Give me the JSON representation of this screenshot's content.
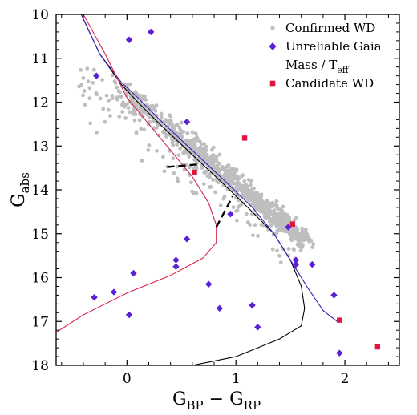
{
  "chart_data": {
    "type": "scatter",
    "xlabel": {
      "main": "G",
      "sub1": "BP",
      "mid": " − G",
      "sub2": "RP"
    },
    "ylabel": {
      "main": "G",
      "sub": "abs"
    },
    "xlim": [
      -0.65,
      2.5
    ],
    "ylim": [
      18,
      10
    ],
    "y_inverted": true,
    "x_ticks": [
      0,
      1,
      2
    ],
    "x_tick_labels": [
      "0",
      "1",
      "2"
    ],
    "y_ticks": [
      10,
      11,
      12,
      13,
      14,
      15,
      16,
      17,
      18
    ],
    "y_tick_labels": [
      "10",
      "11",
      "12",
      "13",
      "14",
      "15",
      "16",
      "17",
      "18"
    ],
    "grid": false,
    "legend_position": "top-right",
    "legend": [
      {
        "label": "Confirmed WD",
        "marker": "circle",
        "color": "#bebebe"
      },
      {
        "label": "Unreliable Gaia",
        "marker": "diamond",
        "color": "#5b1fd6"
      },
      {
        "label_main": "Mass / T",
        "label_sub": "eff",
        "marker": "none",
        "color": "#000000"
      },
      {
        "label": "Candidate WD",
        "marker": "square",
        "color": "#e0143c"
      }
    ],
    "series": [
      {
        "name": "Unreliable Gaia",
        "kind": "scatter",
        "marker": "diamond",
        "color": "#5b1fd6",
        "x": [
          0.02,
          0.22,
          -0.28,
          0.55,
          -0.3,
          -0.12,
          0.02,
          0.06,
          0.45,
          0.45,
          0.55,
          0.75,
          0.85,
          1.15,
          1.2,
          1.55,
          1.7,
          1.9,
          1.95,
          0.95,
          1.48,
          1.55
        ],
        "y": [
          10.58,
          10.4,
          11.4,
          12.45,
          16.45,
          16.33,
          16.85,
          15.9,
          15.6,
          15.75,
          15.12,
          16.15,
          16.7,
          16.63,
          17.13,
          15.6,
          15.7,
          16.4,
          17.72,
          14.55,
          14.85,
          15.7
        ]
      },
      {
        "name": "Candidate WD",
        "kind": "scatter",
        "marker": "square",
        "color": "#e0143c",
        "x": [
          1.08,
          0.62,
          1.52,
          1.95,
          2.3
        ],
        "y": [
          12.82,
          13.6,
          14.78,
          16.97,
          17.58
        ]
      },
      {
        "kind": "line",
        "color": "#000000",
        "x": [
          -0.42,
          -0.25,
          -0.05,
          0.1,
          0.3,
          0.6,
          0.9,
          1.15,
          1.35,
          1.5,
          1.6,
          1.63,
          1.6,
          1.4,
          1.0,
          0.6
        ],
        "y": [
          10.0,
          10.9,
          11.6,
          12.0,
          12.5,
          13.2,
          13.9,
          14.5,
          15.0,
          15.6,
          16.2,
          16.7,
          17.1,
          17.4,
          17.8,
          18.0
        ]
      },
      {
        "kind": "line",
        "color": "#3b1fb8",
        "x": [
          -0.42,
          -0.25,
          -0.05,
          0.1,
          0.3,
          0.6,
          0.9,
          1.15,
          1.35,
          1.5,
          1.65,
          1.8,
          1.93
        ],
        "y": [
          10.0,
          10.9,
          11.55,
          11.9,
          12.4,
          13.1,
          13.8,
          14.4,
          15.0,
          15.6,
          16.2,
          16.75,
          17.0
        ]
      },
      {
        "kind": "line",
        "color": "#d8244a",
        "x": [
          -0.4,
          -0.2,
          0.0,
          0.2,
          0.4,
          0.6,
          0.75,
          0.82,
          0.82,
          0.7,
          0.4,
          0.0,
          -0.4,
          -0.65
        ],
        "y": [
          10.0,
          10.9,
          11.9,
          12.5,
          13.1,
          13.7,
          14.3,
          14.8,
          15.2,
          15.55,
          15.95,
          16.35,
          16.85,
          17.25
        ]
      },
      {
        "kind": "dashed",
        "color": "#000000",
        "x": [
          0.37,
          0.65
        ],
        "y": [
          13.48,
          13.42
        ]
      },
      {
        "kind": "dashed",
        "color": "#000000",
        "x": [
          0.82,
          0.97
        ],
        "y": [
          14.85,
          14.15
        ]
      }
    ],
    "confirmed_wd": {
      "name": "Confirmed WD",
      "marker": "circle",
      "color": "#bebebe",
      "note_count": 1000
    }
  }
}
